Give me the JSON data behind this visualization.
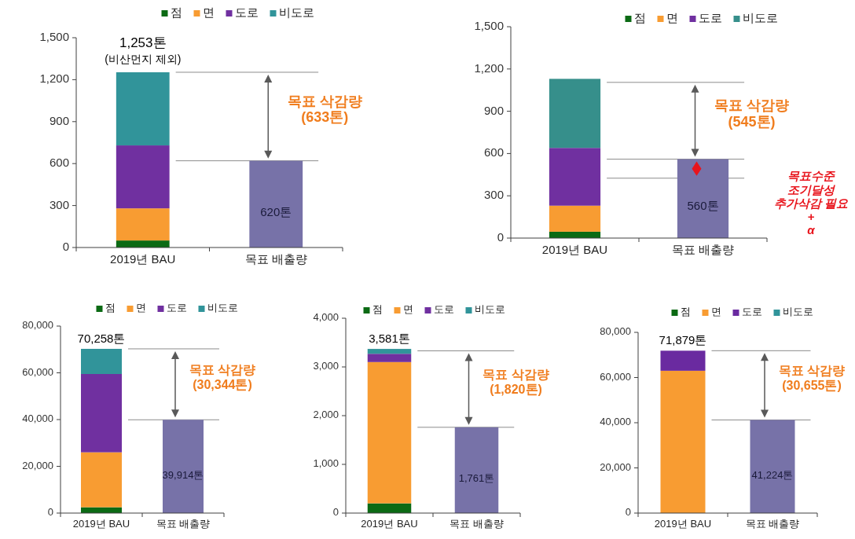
{
  "chart_data": [
    {
      "type": "bar",
      "stacked": true,
      "categories": [
        "2019년 BAU",
        "목표 배출량"
      ],
      "legend": "top",
      "grid": false,
      "series": [
        {
          "name": "점",
          "color": "#0b6a14",
          "values": [
            50,
            null
          ]
        },
        {
          "name": "면",
          "color": "#f89c32",
          "values": [
            230,
            null
          ]
        },
        {
          "name": "도로",
          "color": "#7030a0",
          "values": [
            450,
            null
          ]
        },
        {
          "name": "비도로",
          "color": "#31949a",
          "values": [
            523,
            null
          ]
        },
        {
          "color": "#7772a8",
          "values": [
            null,
            620
          ],
          "value_labels": [
            null,
            "620톤"
          ]
        }
      ],
      "totals": [
        "1,253톤",
        null
      ],
      "ylim": [
        0,
        1500
      ],
      "yticks": [
        0,
        300,
        600,
        900,
        {
          "value": 1200,
          "label": "1,200"
        },
        {
          "value": 1500,
          "label": "1,500"
        }
      ],
      "ref_lines": [
        {
          "axis": "y",
          "value": 1253
        },
        {
          "axis": "y",
          "value": 620
        }
      ],
      "annotations": [
        "(비산먼지 제외)",
        "목표 삭감량\n(633톤)"
      ]
    },
    {
      "type": "bar",
      "stacked": true,
      "categories": [
        "2019년 BAU",
        "목표 배출량"
      ],
      "legend": "top",
      "grid": false,
      "series": [
        {
          "name": "점",
          "color": "#0b6a14",
          "values": [
            45,
            null
          ]
        },
        {
          "name": "면",
          "color": "#f89c32",
          "values": [
            185,
            null
          ]
        },
        {
          "name": "도로",
          "color": "#7030a0",
          "values": [
            410,
            null
          ]
        },
        {
          "name": "비도로",
          "color": "#368f8b",
          "values": [
            490,
            null
          ]
        },
        {
          "color": "#7772a8",
          "values": [
            null,
            560
          ],
          "value_labels": [
            null,
            "560톤"
          ]
        }
      ],
      "ylim": [
        0,
        1500
      ],
      "yticks": [
        0,
        300,
        600,
        900,
        {
          "value": 1200,
          "label": "1,200"
        },
        {
          "value": 1500,
          "label": "1,500"
        }
      ],
      "ref_lines": [
        {
          "axis": "y",
          "value": 1105
        },
        {
          "axis": "y",
          "value": 560
        },
        {
          "axis": "y",
          "value": 425
        }
      ],
      "annotations": [
        "목표수준\n조기달성\n추가삭감 필요\n+\nα",
        "목표 삭감량\n(545톤)"
      ]
    },
    {
      "type": "bar",
      "stacked": true,
      "categories": [
        "2019년 BAU",
        "목표 배출량"
      ],
      "legend": "top",
      "grid": false,
      "series": [
        {
          "name": "점",
          "color": "#0b6a14",
          "values": [
            2500,
            null
          ]
        },
        {
          "name": "면",
          "color": "#f89c32",
          "values": [
            23500,
            null
          ]
        },
        {
          "name": "도로",
          "color": "#7030a0",
          "values": [
            33500,
            null
          ]
        },
        {
          "name": "비도로",
          "color": "#31949a",
          "values": [
            10758,
            null
          ]
        },
        {
          "color": "#7772a8",
          "values": [
            null,
            39914
          ],
          "value_labels": [
            null,
            "39,914톤"
          ]
        }
      ],
      "totals": [
        "70,258톤",
        null
      ],
      "ylim": [
        0,
        80000
      ],
      "yticks": [
        0,
        {
          "value": 20000,
          "label": "20,000"
        },
        {
          "value": 40000,
          "label": "40,000"
        },
        {
          "value": 60000,
          "label": "60,000"
        },
        {
          "value": 80000,
          "label": "80,000"
        }
      ],
      "ref_lines": [
        {
          "axis": "y",
          "value": 70258
        },
        {
          "axis": "y",
          "value": 39914
        }
      ],
      "annotations": [
        "목표 삭감량\n(30,344톤)"
      ]
    },
    {
      "type": "bar",
      "stacked": true,
      "categories": [
        "2019년 BAU",
        "목표 배출량"
      ],
      "legend": "top",
      "grid": false,
      "series": [
        {
          "name": "점",
          "color": "#0b6a14",
          "values": [
            200,
            null
          ]
        },
        {
          "name": "면",
          "color": "#f89c32",
          "values": [
            2900,
            null
          ]
        },
        {
          "name": "도로",
          "color": "#7030a0",
          "values": [
            170,
            null
          ]
        },
        {
          "name": "비도로",
          "color": "#31949a",
          "values": [
            100,
            null
          ]
        },
        {
          "color": "#7772a8",
          "values": [
            null,
            1761
          ],
          "value_labels": [
            null,
            "1,761톤"
          ]
        }
      ],
      "ylim": [
        0,
        4000
      ],
      "yticks": [
        0,
        {
          "value": 1000,
          "label": "1,000"
        },
        {
          "value": 2000,
          "label": "2,000"
        },
        {
          "value": 3000,
          "label": "3,000"
        },
        {
          "value": 4000,
          "label": "4,000"
        }
      ],
      "ref_lines": [
        {
          "axis": "y",
          "value": 3330
        },
        {
          "axis": "y",
          "value": 1761
        }
      ],
      "annotations": [
        "3,581톤",
        "목표 삭감량\n(1,820톤)"
      ]
    },
    {
      "type": "bar",
      "stacked": true,
      "categories": [
        "2019년 BAU",
        "목표 배출량"
      ],
      "legend": "top",
      "grid": false,
      "series": [
        {
          "name": "점",
          "color": "#0b6a14",
          "values": [
            null,
            null
          ]
        },
        {
          "name": "면",
          "color": "#f89c32",
          "values": [
            63000,
            null
          ]
        },
        {
          "name": "도로",
          "color": "#6a2aa0",
          "values": [
            8879,
            null
          ]
        },
        {
          "name": "비도로",
          "color": "#31949a",
          "values": [
            0,
            null
          ]
        },
        {
          "color": "#7772a8",
          "values": [
            null,
            41224
          ],
          "value_labels": [
            null,
            "41,224톤"
          ]
        }
      ],
      "totals": [
        "71,879톤",
        null
      ],
      "ylim": [
        0,
        80000
      ],
      "yticks": [
        0,
        {
          "value": 20000,
          "label": "20,000"
        },
        {
          "value": 40000,
          "label": "40,000"
        },
        {
          "value": 60000,
          "label": "60,000"
        },
        {
          "value": 80000,
          "label": "80,000"
        }
      ],
      "ref_lines": [
        {
          "axis": "y",
          "value": 71879
        },
        {
          "axis": "y",
          "value": 41224
        }
      ],
      "annotations": [
        "목표 삭감량\n(30,655톤)"
      ]
    }
  ]
}
